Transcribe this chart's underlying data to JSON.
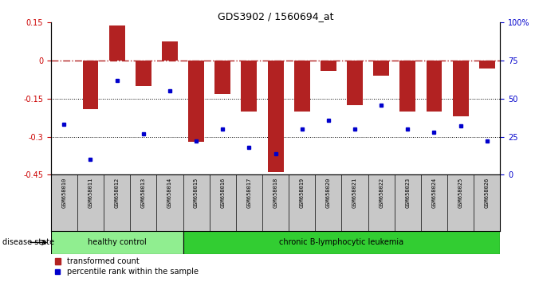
{
  "title": "GDS3902 / 1560694_at",
  "samples": [
    "GSM658010",
    "GSM658011",
    "GSM658012",
    "GSM658013",
    "GSM658014",
    "GSM658015",
    "GSM658016",
    "GSM658017",
    "GSM658018",
    "GSM658019",
    "GSM658020",
    "GSM658021",
    "GSM658022",
    "GSM658023",
    "GSM658024",
    "GSM658025",
    "GSM658026"
  ],
  "bar_values": [
    0.0,
    -0.19,
    0.14,
    -0.1,
    0.075,
    -0.32,
    -0.13,
    -0.2,
    -0.44,
    -0.2,
    -0.04,
    -0.175,
    -0.06,
    -0.2,
    -0.2,
    -0.22,
    -0.03
  ],
  "percentile_values": [
    33,
    10,
    62,
    27,
    55,
    22,
    30,
    18,
    14,
    30,
    36,
    30,
    46,
    30,
    28,
    32,
    22
  ],
  "ylim_left": [
    -0.45,
    0.15
  ],
  "ylim_right": [
    0,
    100
  ],
  "yticks_left": [
    -0.45,
    -0.3,
    -0.15,
    0.0,
    0.15
  ],
  "yticks_right": [
    0,
    25,
    50,
    75,
    100
  ],
  "ytick_labels_left": [
    "-0.45",
    "-0.3",
    "-0.15",
    "0",
    "0.15"
  ],
  "ytick_labels_right": [
    "0",
    "25",
    "50",
    "75",
    "100%"
  ],
  "dotted_line_y": [
    -0.15,
    -0.3
  ],
  "dashed_line_y": 0.0,
  "bar_color": "#B22222",
  "dot_color": "#0000CC",
  "healthy_count": 5,
  "leukemia_count": 12,
  "healthy_color": "#90EE90",
  "leukemia_color": "#32CD32",
  "healthy_label": "healthy control",
  "leukemia_label": "chronic B-lymphocytic leukemia",
  "disease_state_label": "disease state",
  "legend_bar_label": "transformed count",
  "legend_dot_label": "percentile rank within the sample",
  "tick_label_color_left": "#CC0000",
  "tick_label_color_right": "#0000CC",
  "sample_box_color": "#C8C8C8",
  "bar_width": 0.6
}
